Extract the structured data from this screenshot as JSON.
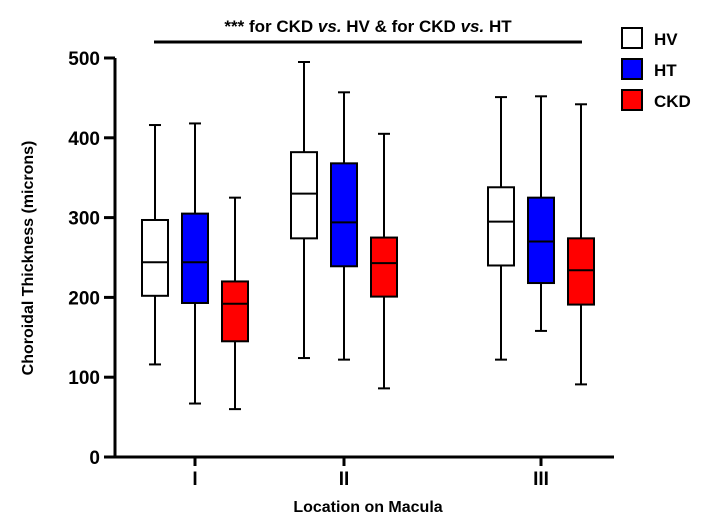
{
  "chart_data": {
    "type": "box",
    "title": "",
    "annotation": {
      "stars": "***",
      "w1": "for CKD",
      "vs1": "vs.",
      "w2": "HV & for CKD",
      "vs2": "vs.",
      "w3": "HT"
    },
    "xlabel": "Location on Macula",
    "ylabel": "Choroidal Thickness (microns)",
    "ylim": [
      0,
      500
    ],
    "yticks": [
      0,
      100,
      200,
      300,
      400,
      500
    ],
    "categories": [
      "I",
      "II",
      "III"
    ],
    "legend_position": "top-right",
    "series": [
      {
        "name": "HV",
        "color": "#ffffff",
        "boxes": [
          {
            "min": 116,
            "q1": 202,
            "median": 244,
            "q3": 297,
            "max": 416
          },
          {
            "min": 124,
            "q1": 274,
            "median": 330,
            "q3": 382,
            "max": 495
          },
          {
            "min": 122,
            "q1": 240,
            "median": 295,
            "q3": 338,
            "max": 451
          }
        ]
      },
      {
        "name": "HT",
        "color": "#0000ff",
        "boxes": [
          {
            "min": 67,
            "q1": 193,
            "median": 244,
            "q3": 305,
            "max": 418
          },
          {
            "min": 122,
            "q1": 239,
            "median": 294,
            "q3": 368,
            "max": 457
          },
          {
            "min": 158,
            "q1": 218,
            "median": 270,
            "q3": 325,
            "max": 452
          }
        ]
      },
      {
        "name": "CKD",
        "color": "#ff0000",
        "boxes": [
          {
            "min": 60,
            "q1": 145,
            "median": 192,
            "q3": 220,
            "max": 325
          },
          {
            "min": 86,
            "q1": 201,
            "median": 243,
            "q3": 275,
            "max": 405
          },
          {
            "min": 91,
            "q1": 191,
            "median": 234,
            "q3": 274,
            "max": 442
          }
        ]
      }
    ]
  }
}
